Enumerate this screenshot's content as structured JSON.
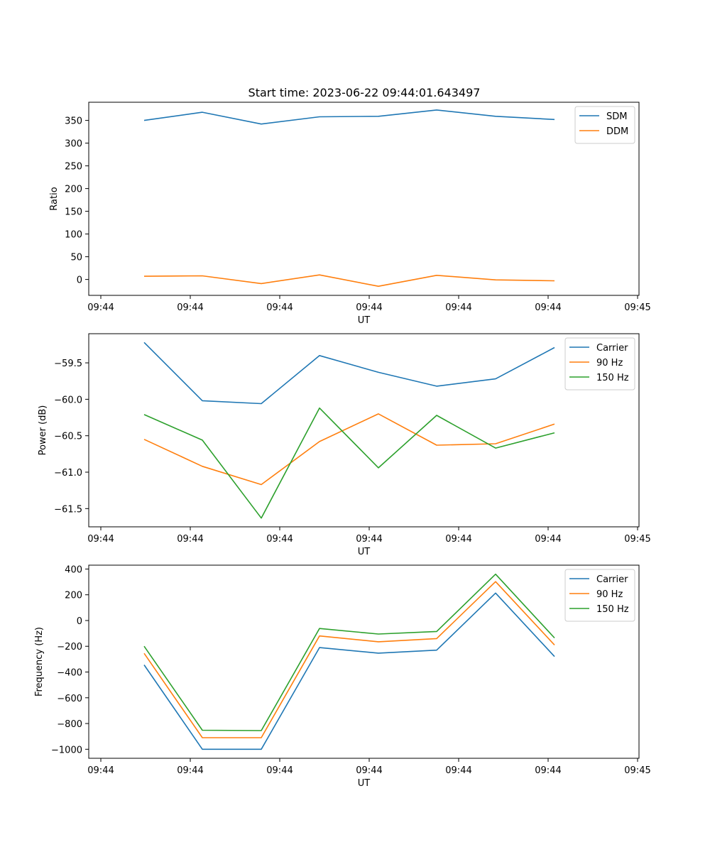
{
  "figure": {
    "title": "Start time: 2023-06-22 09:44:01.643497"
  },
  "chart_data": [
    {
      "type": "line",
      "xlabel": "UT",
      "ylabel": "Ratio",
      "x_tick_labels": [
        "09:44",
        "09:44",
        "09:44",
        "09:44",
        "09:44",
        "09:44",
        "09:45"
      ],
      "ylim": [
        -35,
        390
      ],
      "y_ticks": [
        0,
        50,
        100,
        150,
        200,
        250,
        300,
        350
      ],
      "legend_position": "top-right",
      "series": [
        {
          "name": "SDM",
          "color": "#1f77b4",
          "values": [
            350,
            368,
            342,
            358,
            359,
            373,
            359,
            352
          ]
        },
        {
          "name": "DDM",
          "color": "#ff7f0e",
          "values": [
            7,
            8,
            -9,
            10,
            -15,
            9,
            -1,
            -3
          ]
        }
      ]
    },
    {
      "type": "line",
      "xlabel": "UT",
      "ylabel": "Power (dB)",
      "x_tick_labels": [
        "09:44",
        "09:44",
        "09:44",
        "09:44",
        "09:44",
        "09:44",
        "09:45"
      ],
      "ylim": [
        -61.75,
        -59.1
      ],
      "y_ticks": [
        -61.5,
        -61.0,
        -60.5,
        -60.0,
        -59.5
      ],
      "legend_position": "top-right",
      "series": [
        {
          "name": "Carrier",
          "color": "#1f77b4",
          "values": [
            -59.22,
            -60.02,
            -60.06,
            -59.4,
            -59.63,
            -59.82,
            -59.72,
            -59.29
          ]
        },
        {
          "name": "90 Hz",
          "color": "#ff7f0e",
          "values": [
            -60.55,
            -60.92,
            -61.17,
            -60.58,
            -60.2,
            -60.63,
            -60.61,
            -60.34
          ]
        },
        {
          "name": "150 Hz",
          "color": "#2ca02c",
          "values": [
            -60.21,
            -60.56,
            -61.63,
            -60.12,
            -60.94,
            -60.22,
            -60.67,
            -60.46
          ]
        }
      ]
    },
    {
      "type": "line",
      "xlabel": "UT",
      "ylabel": "Frequency (Hz)",
      "x_tick_labels": [
        "09:44",
        "09:44",
        "09:44",
        "09:44",
        "09:44",
        "09:44",
        "09:45"
      ],
      "ylim": [
        -1070,
        430
      ],
      "y_ticks": [
        -1000,
        -800,
        -600,
        -400,
        -200,
        0,
        200,
        400
      ],
      "legend_position": "top-right",
      "series": [
        {
          "name": "Carrier",
          "color": "#1f77b4",
          "values": [
            -345,
            -1000,
            -1000,
            -210,
            -253,
            -230,
            213,
            -280
          ]
        },
        {
          "name": "90 Hz",
          "color": "#ff7f0e",
          "values": [
            -255,
            -910,
            -910,
            -120,
            -165,
            -140,
            302,
            -190
          ]
        },
        {
          "name": "150 Hz",
          "color": "#2ca02c",
          "values": [
            -200,
            -852,
            -855,
            -62,
            -105,
            -85,
            360,
            -135
          ]
        }
      ]
    }
  ]
}
